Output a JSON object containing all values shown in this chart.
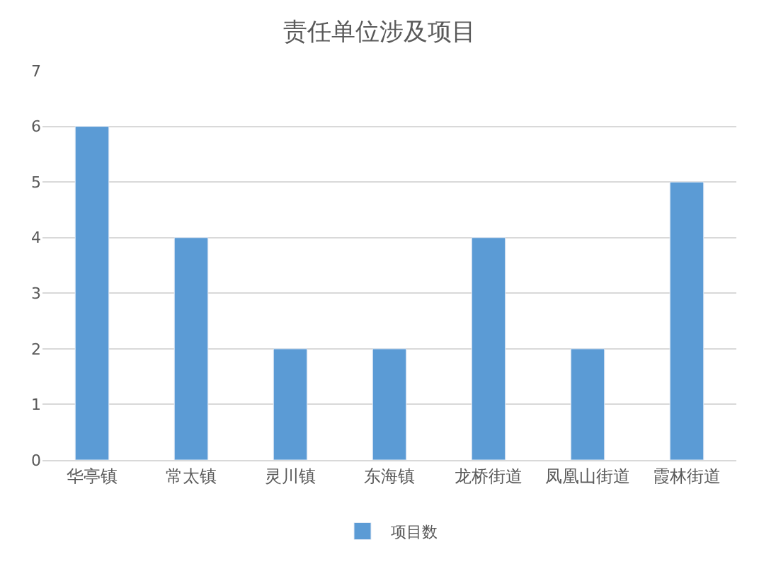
{
  "chart_data": {
    "type": "bar",
    "title": "责任单位涉及项目",
    "categories": [
      "华亭镇",
      "常太镇",
      "灵川镇",
      "东海镇",
      "龙桥街道",
      "凤凰山街道",
      "霞林街道"
    ],
    "series": [
      {
        "name": "项目数",
        "color": "#5b9bd5",
        "values": [
          6,
          4,
          2,
          2,
          4,
          2,
          5
        ]
      }
    ],
    "ylim": [
      0,
      7
    ],
    "yticks": [
      0,
      1,
      2,
      3,
      4,
      5,
      6,
      7
    ],
    "grid": "y",
    "legend": "bottom"
  }
}
